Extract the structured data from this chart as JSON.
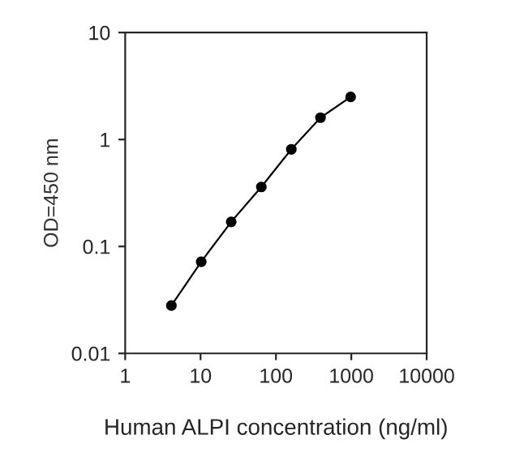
{
  "chart_data": {
    "type": "line",
    "xlabel": "Human ALPI concentration (ng/ml)",
    "ylabel": "OD=450 nm",
    "x": [
      4.1,
      10.2,
      25.5,
      64,
      160,
      390,
      980
    ],
    "series": [
      {
        "color": "#000000",
        "values": [
          0.028,
          0.072,
          0.17,
          0.36,
          0.81,
          1.6,
          2.5
        ]
      }
    ],
    "log": "xy",
    "xlim": [
      1,
      10000
    ],
    "ylim": [
      0.01,
      10
    ],
    "xticks": [
      1,
      10,
      100,
      1000,
      10000
    ],
    "yticks": [
      0.01,
      0.1,
      1,
      10
    ],
    "grid": false,
    "legend": false,
    "marker": "circle",
    "line_style": "solid"
  }
}
